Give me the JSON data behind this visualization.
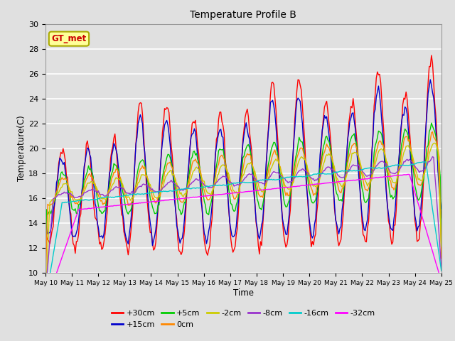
{
  "title": "Temperature Profile B",
  "xlabel": "Time",
  "ylabel": "Temperature(C)",
  "ylim": [
    10,
    30
  ],
  "background_color": "#e0e0e0",
  "legend_label": "GT_met",
  "legend_label_color": "#cc0000",
  "legend_bg": "#ffff99",
  "legend_border": "#aaaa00",
  "series": [
    {
      "label": "+30cm",
      "color": "#ff0000"
    },
    {
      "label": "+15cm",
      "color": "#0000cc"
    },
    {
      "label": "+5cm",
      "color": "#00cc00"
    },
    {
      "label": "0cm",
      "color": "#ff8800"
    },
    {
      "label": "-2cm",
      "color": "#cccc00"
    },
    {
      "label": "-8cm",
      "color": "#9933cc"
    },
    {
      "label": "-16cm",
      "color": "#00cccc"
    },
    {
      "label": "-32cm",
      "color": "#ff00ff"
    }
  ],
  "tick_dates": [
    "May 10",
    "May 11",
    "May 12",
    "May 13",
    "May 14",
    "May 15",
    "May 16",
    "May 17",
    "May 18",
    "May 19",
    "May 20",
    "May 21",
    "May 22",
    "May 23",
    "May 24",
    "May 25"
  ],
  "yticks": [
    10,
    12,
    14,
    16,
    18,
    20,
    22,
    24,
    26,
    28,
    30
  ]
}
